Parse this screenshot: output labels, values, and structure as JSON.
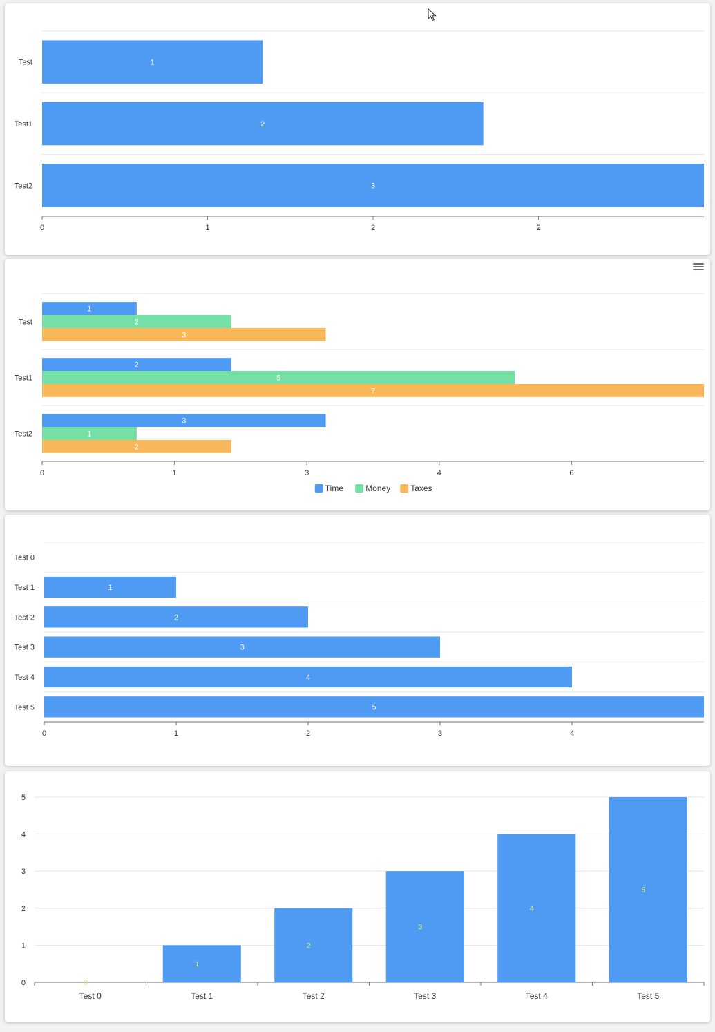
{
  "chart_data": [
    {
      "type": "bar",
      "orientation": "horizontal",
      "categories": [
        "Test",
        "Test1",
        "Test2"
      ],
      "series": [
        {
          "values": [
            1,
            2,
            3
          ]
        }
      ],
      "xticks": [
        "0",
        "1",
        "2",
        "2"
      ],
      "xlim": [
        0,
        3
      ],
      "data_labels": true,
      "colors": [
        "#4f9bf3"
      ],
      "grid": true
    },
    {
      "type": "bar",
      "orientation": "horizontal",
      "categories": [
        "Test",
        "Test1",
        "Test2"
      ],
      "series": [
        {
          "name": "Time",
          "values": [
            1,
            2,
            3
          ]
        },
        {
          "name": "Money",
          "values": [
            2,
            5,
            1
          ]
        },
        {
          "name": "Taxes",
          "values": [
            3,
            7,
            2
          ]
        }
      ],
      "xticks": [
        "0",
        "1",
        "3",
        "4",
        "6"
      ],
      "xlim": [
        0,
        7
      ],
      "legend": "bottom-center",
      "data_labels": true,
      "colors": [
        "#4f9bf3",
        "#74e0a6",
        "#f8b85a"
      ],
      "grid": true
    },
    {
      "type": "bar",
      "orientation": "horizontal",
      "categories": [
        "Test 0",
        "Test 1",
        "Test 2",
        "Test 3",
        "Test 4",
        "Test 5"
      ],
      "series": [
        {
          "values": [
            0,
            1,
            2,
            3,
            4,
            5
          ]
        }
      ],
      "xticks": [
        "0",
        "1",
        "2",
        "3",
        "4"
      ],
      "xlim": [
        0,
        5
      ],
      "data_labels": true,
      "colors": [
        "#4f9bf3"
      ],
      "grid": true
    },
    {
      "type": "bar",
      "orientation": "vertical",
      "categories": [
        "Test 0",
        "Test 1",
        "Test 2",
        "Test 3",
        "Test 4",
        "Test 5"
      ],
      "series": [
        {
          "values": [
            0,
            1,
            2,
            3,
            4,
            5
          ]
        }
      ],
      "yticks": [
        "0",
        "1",
        "2",
        "3",
        "4",
        "5"
      ],
      "ylim": [
        0,
        5
      ],
      "data_labels": true,
      "data_label_color": "#c9f56b",
      "colors": [
        "#4f9bf3"
      ],
      "grid": true
    }
  ]
}
